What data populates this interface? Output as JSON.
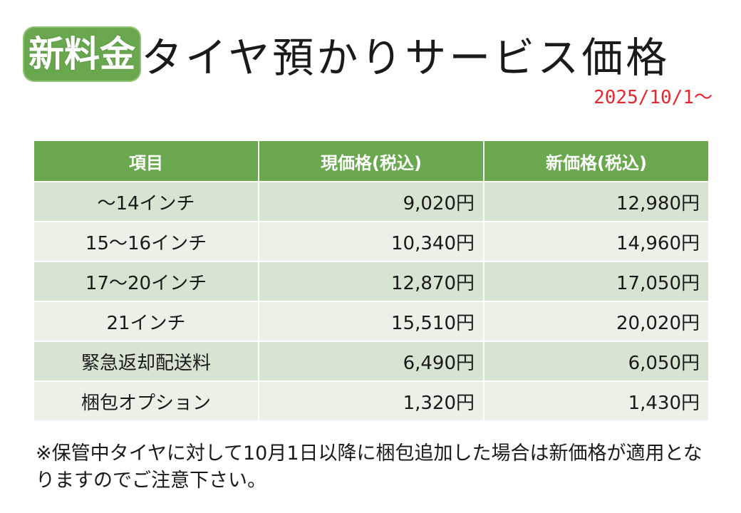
{
  "title": {
    "badge": "新料金",
    "main": "タイヤ預かりサービス価格"
  },
  "effective_date": "2025/10/1〜",
  "table": {
    "headers": [
      "項目",
      "現価格(税込)",
      "新価格(税込)"
    ],
    "rows": [
      {
        "item": "〜14インチ",
        "current": "9,020円",
        "new": "12,980円"
      },
      {
        "item": "15〜16インチ",
        "current": "10,340円",
        "new": "14,960円"
      },
      {
        "item": "17〜20インチ",
        "current": "12,870円",
        "new": "17,050円"
      },
      {
        "item": "21インチ",
        "current": "15,510円",
        "new": "20,020円"
      },
      {
        "item": "緊急返却配送料",
        "current": "6,490円",
        "new": "6,050円"
      },
      {
        "item": "梱包オプション",
        "current": "1,320円",
        "new": "1,430円"
      }
    ]
  },
  "note": "※保管中タイヤに対して10月1日以降に梱包追加した場合は新価格が適用となりますのでご注意下さい。",
  "colors": {
    "header_green": "#6aa84f",
    "row_dark": "#d8e4d2",
    "row_light": "#ebf1e7",
    "date_red": "#e8262b"
  }
}
